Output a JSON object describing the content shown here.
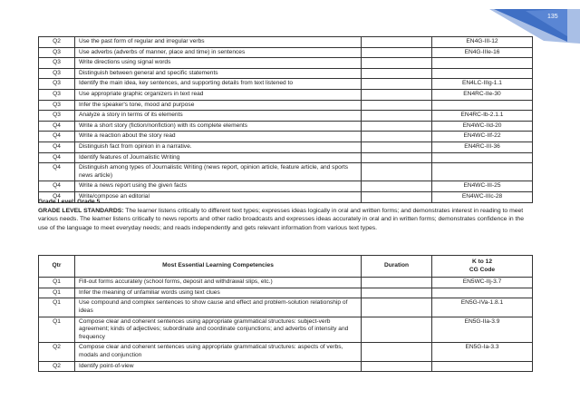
{
  "page_number": "135",
  "colors": {
    "accent": "#3f6fc4",
    "accent_light": "#a9bfe6"
  },
  "table1": {
    "rows": [
      [
        "Q2",
        "Use the past form of regular and irregular verbs",
        "",
        "EN4G-III-12"
      ],
      [
        "Q3",
        "Use adverbs (adverbs of manner, place and time) in sentences",
        "",
        "EN4G-IIIe-16"
      ],
      [
        "Q3",
        "Write directions using signal words",
        "",
        ""
      ],
      [
        "Q3",
        "Distinguish between general and specific statements",
        "",
        ""
      ],
      [
        "Q3",
        "Identify the main idea, key sentences, and supporting details from text listened to",
        "",
        "EN4LC-IIIg-1.1"
      ],
      [
        "Q3",
        "Use appropriate graphic organizers in text read",
        "",
        "EN4RC-IIe-30"
      ],
      [
        "Q3",
        "Infer the speaker's tone, mood and purpose",
        "",
        ""
      ],
      [
        "Q3",
        "Analyze a story in terms of its elements",
        "",
        "EN4RC-Ib-2.1.1"
      ],
      [
        "Q4",
        "Write a short story (fiction/nonfiction) with its complete elements",
        "",
        "EN4WC-IId-20"
      ],
      [
        "Q4",
        "Write a reaction about the story read",
        "",
        "EN4WC-IIf-22"
      ],
      [
        "Q4",
        "Distinguish fact from opinion in a narrative.",
        "",
        "EN4RC-III-36"
      ],
      [
        "Q4",
        "Identify features of Journalistic Writing",
        "",
        ""
      ],
      [
        "Q4",
        "Distinguish among types of Journalistic Writing (news report, opinion article, feature article, and sports news article)",
        "",
        ""
      ],
      [
        "Q4",
        "Write a news report using the given facts",
        "",
        "EN4WC-III-25"
      ],
      [
        "Q4",
        "Write/compose an editorial",
        "",
        "EN4WC-IIIc-28"
      ]
    ]
  },
  "grade": {
    "level_label": "Grade Level: Grade 5",
    "standards_label": "GRADE LEVEL STANDARDS:",
    "standards_text": " The learner listens critically to different text types; expresses ideas logically in oral and written forms; and demonstrates interest in reading to meet various needs. The learner listens critically to news reports and other radio broadcasts and expresses ideas accurately in oral and in written forms; demonstrates confidence in the use of the language to meet everyday needs; and reads independently and gets relevant information from various text types."
  },
  "table2": {
    "headers": [
      "Qtr",
      "Most Essential Learning Competencies",
      "Duration",
      "K to 12",
      "CG Code"
    ],
    "rows": [
      [
        "Q1",
        "Fill-out forms accurately (school forms, deposit and withdrawal slips, etc.)",
        "",
        "EN5WC-IIj-3.7"
      ],
      [
        "Q1",
        "Infer the meaning of unfamiliar words using text clues",
        "",
        ""
      ],
      [
        "Q1",
        "Use compound and complex sentences to show cause and effect and problem-solution relationship of ideas",
        "",
        "EN5G-IVa-1.8.1"
      ],
      [
        "Q1",
        "Compose clear and coherent sentences using appropriate grammatical structures: subject-verb agreement; kinds of adjectives; subordinate and coordinate conjunctions; and adverbs of intensity and frequency",
        "",
        "EN5G-IIa-3.9"
      ],
      [
        "Q2",
        "Compose clear and coherent sentences using appropriate grammatical structures: aspects of verbs, modals and conjunction",
        "",
        "EN5G-Ia-3.3"
      ],
      [
        "Q2",
        "Identify point-of-view",
        "",
        ""
      ]
    ]
  }
}
